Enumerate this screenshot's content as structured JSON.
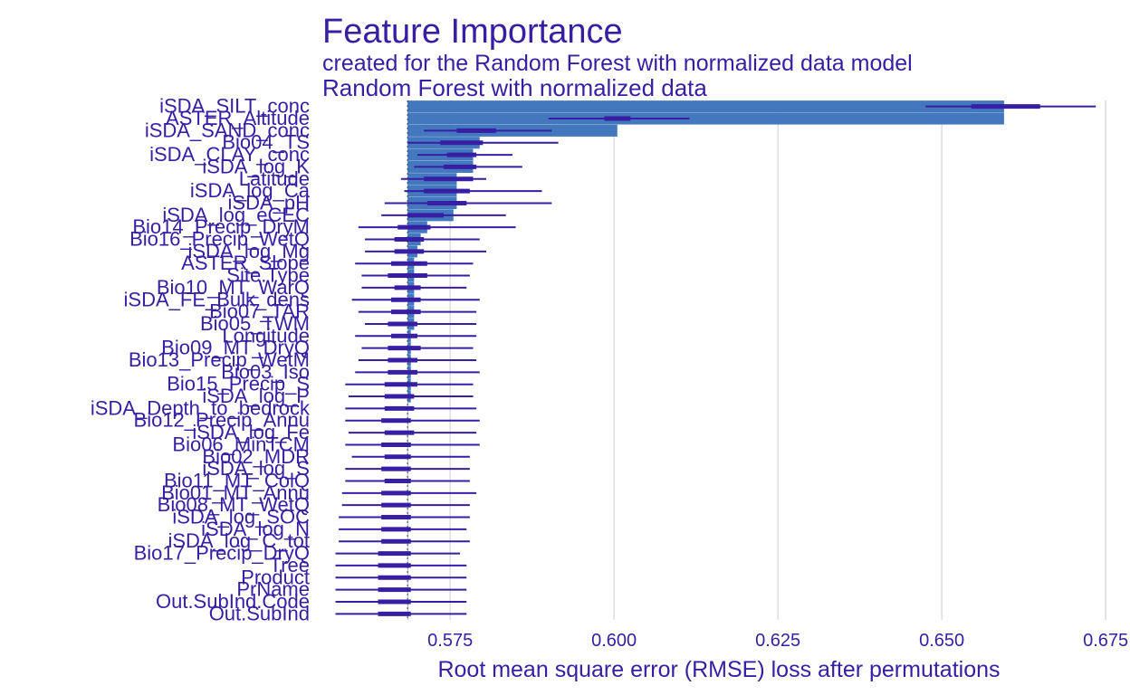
{
  "title": "Feature Importance",
  "subtitle": "created for the Random Forest with normalized data model",
  "colors": {
    "text": "#371ea3",
    "bar": "#4378bf",
    "whisker": "#371ea3",
    "grid": "#dddddd",
    "baseline": "#3a3a3a"
  },
  "chart_data": {
    "type": "bar",
    "orientation": "horizontal",
    "panel": "Random Forest with normalized data",
    "xlabel": "Root mean square error (RMSE) loss after permutations",
    "ylabel": "",
    "xlim": [
      0.5555,
      0.6765
    ],
    "xticks": [
      "0.575",
      "0.600",
      "0.625",
      "0.650",
      "0.675"
    ],
    "baseline": 0.5685,
    "grid": true,
    "categories": [
      "iSDA_SILT_conc",
      "ASTER_Altitude",
      "iSDA_SAND_conc",
      "Bio04_TS",
      "iSDA_CLAY_conc",
      "iSDA_log_K",
      "Latitude",
      "iSDA_log_Ca",
      "iSDA_pH",
      "iSDA_log_eCEC",
      "Bio14_Precip_DryM",
      "Bio16_Precip_WetQ",
      "iSDA_log_Mg",
      "ASTER_Slope",
      "Site.Type",
      "Bio10_MT_WarQ",
      "iSDA_FE_Bulk_dens",
      "Bio07_TAR",
      "Bio05_TWM",
      "Longitude",
      "Bio09_MT_DryQ",
      "Bio13_Precip_WetM",
      "Bio03_Iso",
      "Bio15_Precip_S",
      "iSDA_log_P",
      "iSDA_Depth_to_bedrock",
      "Bio12_Precip_Annu",
      "iSDA_log_Fe",
      "Bio06_MinTCM",
      "Bio02_MDR",
      "iSDA_log_S",
      "Bio11_MT_ColQ",
      "Bio01_MT_Annu",
      "Bio08_MT_WetQ",
      "iSDA_log_SOC",
      "iSDA_log_N",
      "iSDA_log_C_tot",
      "Bio17_Precip_DryQ",
      "Tree",
      "Product",
      "PrName",
      "Out.SubInd.Code",
      "Out.SubInd"
    ],
    "values": [
      0.6595,
      0.6595,
      0.6005,
      0.5795,
      0.5785,
      0.5785,
      0.576,
      0.576,
      0.576,
      0.5755,
      0.5715,
      0.5705,
      0.57,
      0.5695,
      0.5695,
      0.5695,
      0.5695,
      0.5695,
      0.5695,
      0.569,
      0.569,
      0.569,
      0.569,
      0.569,
      0.569,
      0.5685,
      0.5685,
      0.5685,
      0.5685,
      0.5685,
      0.5685,
      0.5685,
      0.5685,
      0.5685,
      0.5685,
      0.5685,
      0.5685,
      0.5685,
      0.5685,
      0.5685,
      0.5685,
      0.5685,
      0.5685
    ],
    "distribution": {
      "min": [
        0.6475,
        0.59,
        0.571,
        0.5685,
        0.57,
        0.5695,
        0.5675,
        0.568,
        0.565,
        0.5645,
        0.561,
        0.562,
        0.562,
        0.5605,
        0.5615,
        0.5615,
        0.56,
        0.561,
        0.562,
        0.5605,
        0.5615,
        0.561,
        0.5605,
        0.559,
        0.5595,
        0.559,
        0.559,
        0.5595,
        0.559,
        0.56,
        0.559,
        0.559,
        0.5585,
        0.5585,
        0.558,
        0.558,
        0.558,
        0.5575,
        0.5575,
        0.5575,
        0.5575,
        0.5575,
        0.5575
      ],
      "q1": [
        0.6545,
        0.5985,
        0.576,
        0.5735,
        0.5745,
        0.574,
        0.571,
        0.571,
        0.5715,
        0.5685,
        0.567,
        0.5665,
        0.5665,
        0.566,
        0.5655,
        0.5665,
        0.566,
        0.566,
        0.5655,
        0.566,
        0.5655,
        0.5655,
        0.5655,
        0.565,
        0.565,
        0.565,
        0.5645,
        0.565,
        0.5645,
        0.565,
        0.5645,
        0.565,
        0.5645,
        0.5645,
        0.5645,
        0.5645,
        0.5645,
        0.564,
        0.564,
        0.564,
        0.564,
        0.564,
        0.564
      ],
      "q3": [
        0.665,
        0.6025,
        0.582,
        0.58,
        0.579,
        0.579,
        0.5785,
        0.578,
        0.5775,
        0.574,
        0.572,
        0.571,
        0.571,
        0.5715,
        0.5715,
        0.5705,
        0.5705,
        0.5705,
        0.57,
        0.57,
        0.5705,
        0.57,
        0.57,
        0.57,
        0.5695,
        0.5695,
        0.569,
        0.5695,
        0.569,
        0.569,
        0.569,
        0.569,
        0.569,
        0.569,
        0.569,
        0.569,
        0.569,
        0.569,
        0.569,
        0.569,
        0.569,
        0.569,
        0.569
      ],
      "max": [
        0.6735,
        0.6115,
        0.5905,
        0.5915,
        0.5845,
        0.586,
        0.5805,
        0.589,
        0.5905,
        0.5835,
        0.585,
        0.5795,
        0.5805,
        0.5785,
        0.578,
        0.5775,
        0.5795,
        0.579,
        0.579,
        0.579,
        0.5785,
        0.579,
        0.5795,
        0.5785,
        0.5785,
        0.579,
        0.5795,
        0.579,
        0.5795,
        0.578,
        0.578,
        0.578,
        0.579,
        0.578,
        0.578,
        0.5775,
        0.578,
        0.5765,
        0.5775,
        0.5775,
        0.5775,
        0.5775,
        0.5775
      ]
    }
  }
}
